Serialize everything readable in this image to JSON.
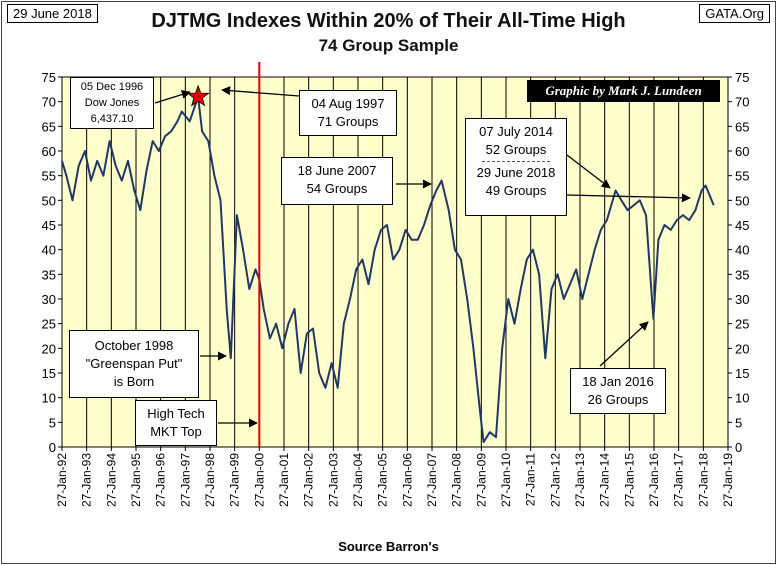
{
  "header": {
    "date_label": "29 June 2018",
    "site_label": "GATA.Org",
    "title": "DJTMG Indexes Within 20% of Their All-Time High",
    "subtitle": "74 Group Sample",
    "credit": "Graphic by Mark J. Lundeen",
    "source": "Source Barron's"
  },
  "annotations": {
    "dow": [
      "05 Dec 1996",
      "Dow Jones",
      "6,437.10"
    ],
    "aug1997": [
      "04 Aug 1997",
      "71 Groups"
    ],
    "jun2007": [
      "18 June 2007",
      "54 Groups"
    ],
    "jul2014": [
      "07 July 2014",
      "52 Groups"
    ],
    "jun2018": [
      "29 June 2018",
      "49 Groups"
    ],
    "oct1998": [
      "October 1998",
      "\"Greenspan Put\"",
      "is Born"
    ],
    "hightech": [
      "High Tech",
      "MKT Top"
    ],
    "jan2016": [
      "18 Jan 2016",
      "26 Groups"
    ]
  },
  "colors": {
    "plot_bg": "#ffffcc",
    "line": "#1f3864",
    "marker_line": "#e00000",
    "star": "#e00000",
    "grid": "#000000"
  },
  "chart_data": {
    "type": "line",
    "xlabel": "Source Barron's",
    "ylabel": "",
    "ylim": [
      0,
      75
    ],
    "yticks": [
      0,
      5,
      10,
      15,
      20,
      25,
      30,
      35,
      40,
      45,
      50,
      55,
      60,
      65,
      70,
      75
    ],
    "x_tick_labels": [
      "27-Jan-92",
      "27-Jan-93",
      "27-Jan-94",
      "27-Jan-95",
      "27-Jan-96",
      "27-Jan-97",
      "27-Jan-98",
      "27-Jan-99",
      "27-Jan-00",
      "27-Jan-01",
      "27-Jan-02",
      "27-Jan-03",
      "27-Jan-04",
      "27-Jan-05",
      "27-Jan-06",
      "27-Jan-07",
      "27-Jan-08",
      "27-Jan-09",
      "27-Jan-10",
      "27-Jan-11",
      "27-Jan-12",
      "27-Jan-13",
      "27-Jan-14",
      "27-Jan-15",
      "27-Jan-16",
      "27-Jan-17",
      "27-Jan-18",
      "27-Jan-19"
    ],
    "grid": "vertical",
    "vertical_marker_date": "2000-01-27",
    "star_point": {
      "date": "1997-08-04",
      "value": 71
    },
    "series": [
      {
        "x": [
          "1992-01-27",
          "1992-04-01",
          "1992-07-01",
          "1992-10-01",
          "1993-01-01",
          "1993-04-01",
          "1993-07-01",
          "1993-10-01",
          "1994-01-01",
          "1994-04-01",
          "1994-07-01",
          "1994-10-01",
          "1995-01-01",
          "1995-04-01",
          "1995-07-01",
          "1995-10-01",
          "1996-01-01",
          "1996-04-01",
          "1996-07-01",
          "1996-10-01",
          "1996-12-05",
          "1997-04-01",
          "1997-08-04",
          "1997-10-01",
          "1998-01-01",
          "1998-04-01",
          "1998-07-01",
          "1998-10-01",
          "1998-12-01",
          "1999-03-01",
          "1999-06-01",
          "1999-09-01",
          "1999-12-01",
          "2000-01-27",
          "2000-04-01",
          "2000-07-01",
          "2000-10-01",
          "2001-01-01",
          "2001-04-01",
          "2001-07-01",
          "2001-10-01",
          "2002-01-01",
          "2002-04-01",
          "2002-07-01",
          "2002-10-01",
          "2003-01-01",
          "2003-04-01",
          "2003-07-01",
          "2003-10-01",
          "2004-01-01",
          "2004-04-01",
          "2004-07-01",
          "2004-10-01",
          "2005-01-01",
          "2005-04-01",
          "2005-07-01",
          "2005-10-01",
          "2006-01-01",
          "2006-04-01",
          "2006-07-01",
          "2006-10-01",
          "2007-01-01",
          "2007-04-01",
          "2007-06-18",
          "2007-10-01",
          "2008-01-01",
          "2008-04-01",
          "2008-07-01",
          "2008-10-01",
          "2009-01-01",
          "2009-03-01",
          "2009-06-01",
          "2009-09-01",
          "2009-12-01",
          "2010-03-01",
          "2010-06-01",
          "2010-09-01",
          "2010-12-01",
          "2011-03-01",
          "2011-06-01",
          "2011-09-01",
          "2011-12-01",
          "2012-03-01",
          "2012-06-01",
          "2012-09-01",
          "2012-12-01",
          "2013-03-01",
          "2013-06-01",
          "2013-09-01",
          "2013-12-01",
          "2014-03-01",
          "2014-07-07",
          "2014-10-01",
          "2015-01-01",
          "2015-04-01",
          "2015-07-01",
          "2015-10-01",
          "2016-01-18",
          "2016-04-01",
          "2016-07-01",
          "2016-10-01",
          "2017-01-01",
          "2017-04-01",
          "2017-07-01",
          "2017-10-01",
          "2018-01-01",
          "2018-03-01",
          "2018-06-29"
        ],
        "values": [
          58,
          55,
          50,
          57,
          60,
          54,
          58,
          55,
          62,
          57,
          54,
          58,
          52,
          48,
          56,
          62,
          60,
          63,
          64,
          66,
          68,
          66,
          71,
          64,
          62,
          55,
          50,
          28,
          18,
          47,
          40,
          32,
          36,
          34,
          28,
          22,
          25,
          20,
          25,
          28,
          15,
          23,
          24,
          15,
          12,
          17,
          12,
          25,
          30,
          36,
          38,
          33,
          40,
          44,
          45,
          38,
          40,
          44,
          42,
          42,
          45,
          49,
          52,
          54,
          48,
          40,
          38,
          30,
          20,
          8,
          1,
          3,
          2,
          20,
          30,
          25,
          32,
          38,
          40,
          35,
          18,
          32,
          35,
          30,
          33,
          36,
          30,
          35,
          40,
          44,
          46,
          52,
          50,
          48,
          49,
          50,
          47,
          26,
          42,
          45,
          44,
          46,
          47,
          46,
          48,
          52,
          53,
          49
        ]
      }
    ]
  }
}
